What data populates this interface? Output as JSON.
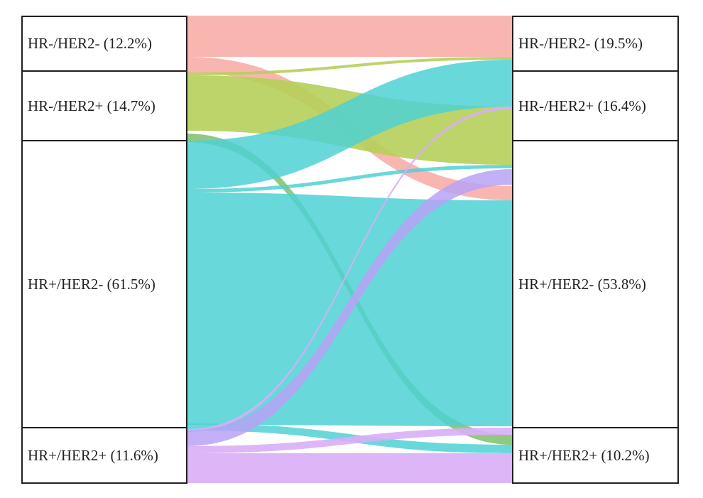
{
  "diagram": {
    "type": "alluvial",
    "left_nodes": [
      {
        "label": "HR-/HER2- (12.2%)",
        "color": "#f8a9a3"
      },
      {
        "label": "HR-/HER2+ (14.7%)",
        "color": "#b5cf5a"
      },
      {
        "label": "HR+/HER2- (61.5%)",
        "color": "#4fd1d3"
      },
      {
        "label": "HR+/HER2+ (11.6%)",
        "color": "#d9aef7"
      }
    ],
    "right_nodes": [
      {
        "label": "HR-/HER2- (19.5%)"
      },
      {
        "label": "HR-/HER2+ (16.4%)"
      },
      {
        "label": "HR+/HER2- (53.8%)"
      },
      {
        "label": "HR+/HER2+ (10.2%)"
      }
    ]
  }
}
